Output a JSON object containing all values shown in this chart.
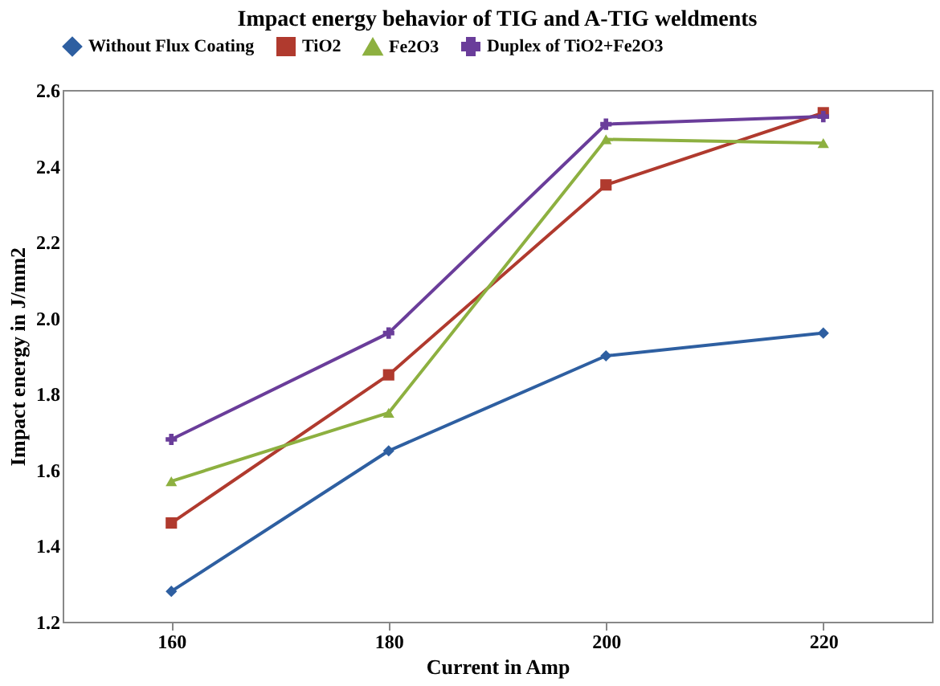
{
  "chart_data": {
    "type": "line",
    "title": "Impact energy behavior of TIG and A-TIG weldments",
    "xlabel": "Current in Amp",
    "ylabel": "Impact energy in J/mm2",
    "categories": [
      "160",
      "180",
      "200",
      "220"
    ],
    "series": [
      {
        "name": "Without Flux Coating",
        "color": "#2e5fa1",
        "marker": "diamond",
        "values": [
          1.28,
          1.65,
          1.9,
          1.96
        ]
      },
      {
        "name": "TiO2",
        "color": "#b03a2e",
        "marker": "square",
        "values": [
          1.46,
          1.85,
          2.35,
          2.54
        ]
      },
      {
        "name": "Fe2O3",
        "color": "#8db040",
        "marker": "triangle",
        "values": [
          1.57,
          1.75,
          2.47,
          2.46
        ]
      },
      {
        "name": "Duplex of TiO2+Fe2O3",
        "color": "#6a3d9a",
        "marker": "cross",
        "values": [
          1.68,
          1.96,
          2.51,
          2.53
        ]
      }
    ],
    "ylim": [
      1.2,
      2.6
    ],
    "yticks": [
      1.2,
      1.4,
      1.6,
      1.8,
      {
        "value": 2,
        "label": "2.0"
      },
      2.2,
      2.4,
      2.6
    ],
    "grid": false,
    "legend": "top",
    "line_style": "solid"
  }
}
